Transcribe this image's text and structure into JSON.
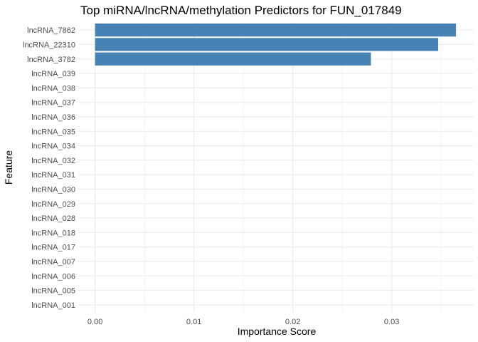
{
  "chart_data": {
    "type": "bar",
    "orientation": "horizontal",
    "title": "Top miRNA/lncRNA/methylation Predictors for FUN_017849",
    "xlabel": "Importance Score",
    "ylabel": "Feature",
    "categories": [
      "lncRNA_7862",
      "lncRNA_22310",
      "lncRNA_3782",
      "lncRNA_039",
      "lncRNA_038",
      "lncRNA_037",
      "lncRNA_036",
      "lncRNA_035",
      "lncRNA_034",
      "lncRNA_032",
      "lncRNA_031",
      "lncRNA_030",
      "lncRNA_029",
      "lncRNA_028",
      "lncRNA_018",
      "lncRNA_017",
      "lncRNA_007",
      "lncRNA_006",
      "lncRNA_005",
      "lncRNA_001"
    ],
    "values": [
      0.0365,
      0.0347,
      0.0279,
      0,
      0,
      0,
      0,
      0,
      0,
      0,
      0,
      0,
      0,
      0,
      0,
      0,
      0,
      0,
      0,
      0
    ],
    "xlim": [
      -0.0017,
      0.0383
    ],
    "xticks": [
      0.0,
      0.01,
      0.02,
      0.03
    ],
    "xtick_labels": [
      "0.00",
      "0.01",
      "0.02",
      "0.03"
    ],
    "bar_color": "#4682B4",
    "grid": true,
    "grid_color": "#ebebeb",
    "legend": "none"
  }
}
